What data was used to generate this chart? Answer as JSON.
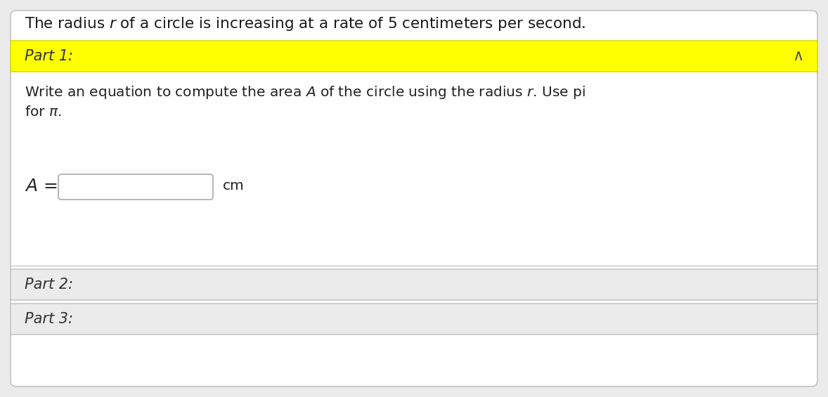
{
  "part1_label": "Part 1:",
  "part1_bg": "#FFFF00",
  "part1_border": "#DDDD00",
  "part2_label": "Part 2:",
  "part3_label": "Part 3:",
  "part23_bg": "#EBEBEB",
  "part_border": "#C8C8C8",
  "instruction_line1": "Write an equation to compute the area $\\mathit{A}$ of the circle using the radius $r$. Use pi",
  "instruction_line2": "for $\\pi$.",
  "eq_unit": "cm",
  "outer_bg": "#EBEBEB",
  "card_bg": "#FFFFFF",
  "card_border": "#CCCCCC",
  "caret": "∧",
  "font_size_title": 15.5,
  "font_size_part": 15,
  "font_size_instr": 14.5,
  "font_size_eq": 18
}
